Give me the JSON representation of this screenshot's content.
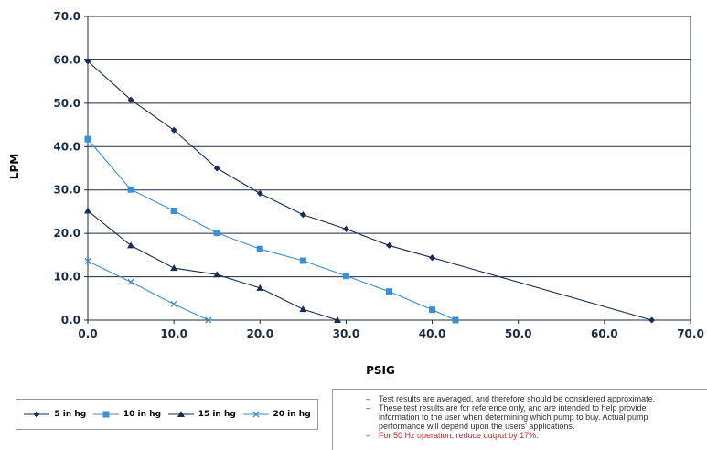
{
  "chart_data": {
    "type": "line",
    "title": "",
    "xlabel": "PSIG",
    "ylabel": "LPM",
    "xlim": [
      0,
      70
    ],
    "ylim": [
      0,
      70
    ],
    "xticks": [
      "0.0",
      "10.0",
      "20.0",
      "30.0",
      "40.0",
      "50.0",
      "60.0",
      "70.0"
    ],
    "yticks": [
      "0.0",
      "10.0",
      "20.0",
      "30.0",
      "40.0",
      "50.0",
      "60.0",
      "70.0"
    ],
    "grid": "horizontal",
    "legend_position": "bottom-left",
    "series": [
      {
        "name": "5 in hg",
        "color": "#1a2b55",
        "marker": "diamond",
        "x": [
          0,
          5,
          10,
          15,
          20,
          25,
          30,
          35,
          40,
          65.5
        ],
        "y": [
          59.7,
          50.8,
          43.8,
          35.0,
          29.2,
          24.3,
          21.0,
          17.2,
          14.4,
          0
        ]
      },
      {
        "name": "10 in hg",
        "color": "#3b8fd4",
        "marker": "square",
        "x": [
          0,
          5,
          10,
          15,
          20,
          25,
          30,
          35,
          40,
          42.7
        ],
        "y": [
          41.7,
          30.1,
          25.2,
          20.1,
          16.4,
          13.7,
          10.2,
          6.6,
          2.4,
          0
        ]
      },
      {
        "name": "15 in hg",
        "color": "#1a2b55",
        "marker": "triangle",
        "x": [
          0,
          5,
          10,
          15,
          20,
          25,
          29
        ],
        "y": [
          25.2,
          17.2,
          12.0,
          10.5,
          7.4,
          2.5,
          0
        ]
      },
      {
        "name": "20 in hg",
        "color": "#3b8fd4",
        "marker": "x",
        "x": [
          0,
          5,
          10,
          14
        ],
        "y": [
          13.6,
          8.8,
          3.7,
          0
        ]
      }
    ]
  },
  "notes": [
    {
      "text": "Test results are averaged, and therefore should be considered approximate.",
      "color": "#333333"
    },
    {
      "text": "These test results are for reference only, and are intended to help provide\ninformation to the user when determining which pump to buy. Actual pump\nperformance will depend upon the users' applications.",
      "color": "#333333"
    },
    {
      "text": "For 50 Hz operation, reduce output by 17%.",
      "color": "#d6242a"
    }
  ],
  "note_bullet": "–"
}
